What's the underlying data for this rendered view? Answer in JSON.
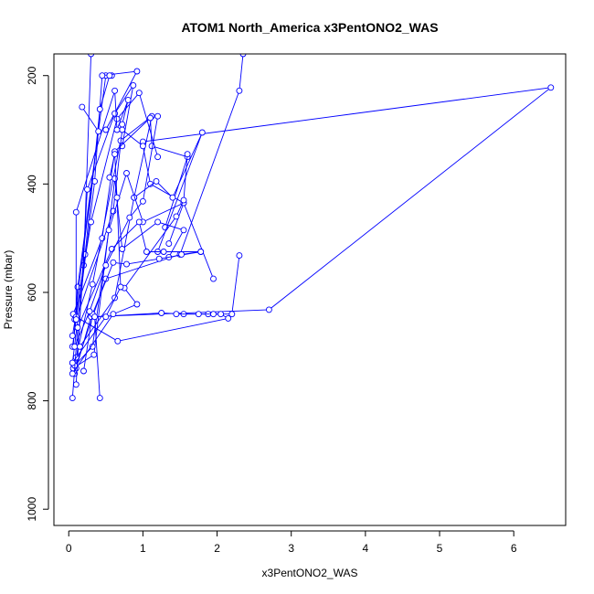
{
  "chart_data": {
    "type": "line",
    "title": "ATOM1 North_America x3PentONO2_WAS",
    "xlabel": "x3PentONO2_WAS",
    "ylabel": "Pressure (mbar)",
    "xlim": [
      -0.2,
      6.7
    ],
    "ylim": [
      1030,
      160
    ],
    "y_reversed": true,
    "x_ticks": [
      0,
      1,
      2,
      3,
      4,
      5,
      6
    ],
    "y_ticks": [
      200,
      400,
      600,
      800,
      1000
    ],
    "x_tick_labels": [
      "0",
      "1",
      "2",
      "3",
      "4",
      "5",
      "6"
    ],
    "y_tick_labels": [
      "200",
      "400",
      "600",
      "800",
      "1000"
    ],
    "grid": false,
    "series": [
      {
        "color": "#0000ff",
        "marker": "open-circle",
        "segments": [
          [
            [
              0.08,
              750
            ],
            [
              0.3,
              645
            ],
            [
              2.7,
              632
            ],
            [
              6.5,
              222
            ],
            [
              1.0,
              322
            ]
          ],
          [
            [
              0.07,
              745
            ],
            [
              0.5,
              575
            ],
            [
              1.5,
              530
            ],
            [
              2.3,
              228
            ],
            [
              2.35,
              160
            ]
          ],
          [
            [
              0.06,
              700
            ],
            [
              0.12,
              590
            ],
            [
              0.5,
              200
            ],
            [
              0.58,
              200
            ]
          ],
          [
            [
              0.1,
              740
            ],
            [
              0.2,
              550
            ],
            [
              0.3,
              160
            ]
          ],
          [
            [
              0.05,
              730
            ],
            [
              0.35,
              395
            ],
            [
              0.45,
              200
            ],
            [
              0.92,
              192
            ],
            [
              0.5,
              300
            ]
          ],
          [
            [
              0.05,
              700
            ],
            [
              0.22,
              530
            ],
            [
              0.42,
              262
            ],
            [
              0.55,
              200
            ]
          ],
          [
            [
              0.08,
              650
            ],
            [
              0.4,
              303
            ],
            [
              0.18,
              258
            ]
          ],
          [
            [
              0.1,
              770
            ],
            [
              0.25,
              410
            ],
            [
              0.62,
              270
            ],
            [
              0.87,
              218
            ],
            [
              0.72,
              330
            ]
          ],
          [
            [
              0.05,
              680
            ],
            [
              0.3,
              470
            ],
            [
              0.65,
              280
            ],
            [
              0.95,
              232
            ],
            [
              1.2,
              350
            ]
          ],
          [
            [
              0.1,
              720
            ],
            [
              0.32,
              585
            ],
            [
              0.7,
              320
            ],
            [
              1.12,
              275
            ],
            [
              0.88,
              425
            ]
          ],
          [
            [
              0.06,
              640
            ],
            [
              0.45,
              500
            ],
            [
              0.62,
              340
            ],
            [
              1.1,
              278
            ],
            [
              1.12,
              330
            ],
            [
              1.6,
              350
            ],
            [
              1.3,
              480
            ]
          ],
          [
            [
              0.1,
              650
            ],
            [
              0.6,
              450
            ],
            [
              0.72,
              300
            ],
            [
              1.0,
              330
            ],
            [
              1.1,
              400
            ],
            [
              1.55,
              435
            ],
            [
              1.35,
              510
            ]
          ],
          [
            [
              0.15,
              700
            ],
            [
              0.62,
              610
            ],
            [
              0.88,
              425
            ],
            [
              1.18,
              395
            ],
            [
              1.4,
              425
            ],
            [
              1.8,
              305
            ],
            [
              1.2,
              525
            ]
          ],
          [
            [
              0.06,
              740
            ],
            [
              0.34,
              715
            ],
            [
              0.62,
              390
            ],
            [
              0.72,
              520
            ],
            [
              1.2,
              470
            ],
            [
              1.55,
              485
            ],
            [
              1.35,
              535
            ]
          ],
          [
            [
              0.08,
              735
            ],
            [
              0.32,
              700
            ],
            [
              0.54,
              485
            ],
            [
              0.78,
              380
            ],
            [
              1.0,
              470
            ],
            [
              1.55,
              435
            ],
            [
              1.95,
              575
            ]
          ],
          [
            [
              0.2,
              745
            ],
            [
              0.32,
              640
            ],
            [
              0.6,
              545
            ],
            [
              0.78,
              548
            ],
            [
              1.22,
              538
            ],
            [
              1.78,
              525
            ],
            [
              1.52,
              530
            ]
          ],
          [
            [
              0.05,
              795
            ],
            [
              0.12,
              665
            ],
            [
              0.58,
              520
            ],
            [
              0.95,
              470
            ],
            [
              1.05,
              525
            ],
            [
              1.28,
              525
            ],
            [
              1.78,
              525
            ]
          ],
          [
            [
              0.42,
              795
            ],
            [
              0.35,
              645
            ],
            [
              1.25,
              638
            ],
            [
              1.55,
              640
            ],
            [
              1.88,
              640
            ],
            [
              2.2,
              640
            ],
            [
              2.3,
              532
            ]
          ],
          [
            [
              0.1,
              645
            ],
            [
              0.66,
              690
            ],
            [
              2.15,
              648
            ],
            [
              2.05,
              640
            ],
            [
              1.95,
              640
            ],
            [
              1.75,
              640
            ],
            [
              1.45,
              640
            ]
          ],
          [
            [
              0.05,
              750
            ],
            [
              0.6,
              640
            ],
            [
              0.92,
              622
            ],
            [
              0.75,
              592
            ],
            [
              1.45,
              460
            ],
            [
              1.55,
              430
            ],
            [
              1.6,
              345
            ]
          ],
          [
            [
              0.08,
              700
            ],
            [
              0.28,
              635
            ],
            [
              0.5,
              550
            ],
            [
              0.82,
              462
            ],
            [
              1.0,
              432
            ],
            [
              1.2,
              275
            ]
          ],
          [
            [
              0.1,
              650
            ],
            [
              0.1,
              452
            ],
            [
              0.62,
              228
            ],
            [
              0.65,
              300
            ],
            [
              0.8,
              245
            ],
            [
              0.72,
              290
            ]
          ],
          [
            [
              0.05,
              730
            ],
            [
              0.5,
              645
            ],
            [
              0.7,
              590
            ],
            [
              0.65,
              425
            ],
            [
              0.62,
              345
            ],
            [
              0.55,
              388
            ]
          ]
        ]
      }
    ]
  }
}
